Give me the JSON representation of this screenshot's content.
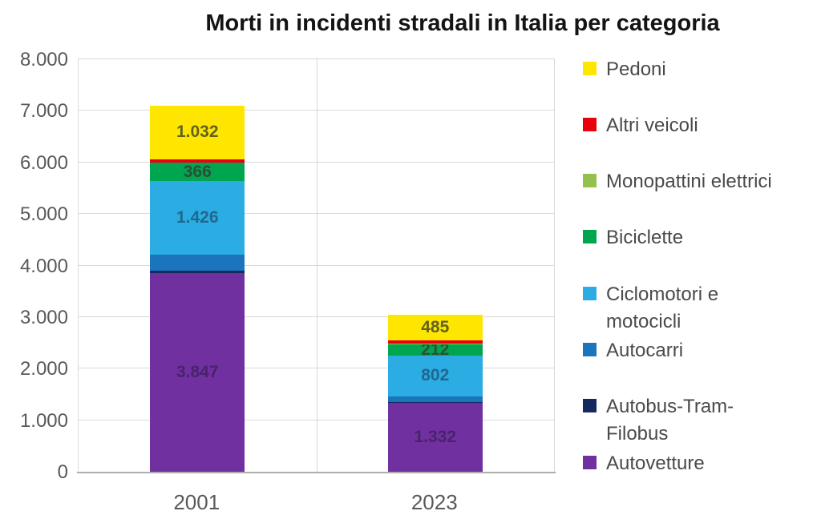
{
  "title": "Morti in incidenti stradali in Italia per categoria",
  "chart_data": {
    "type": "bar",
    "stacked": true,
    "title": "Morti in incidenti stradali in Italia per categoria",
    "categories": [
      "2001",
      "2023"
    ],
    "series": [
      {
        "name": "Autovetture",
        "color": "#7030A0",
        "values": [
          3847,
          1332
        ],
        "data_labels": [
          "3.847",
          "1.332"
        ],
        "label_color": "rgba(32,22,52,0.5)"
      },
      {
        "name": "Autobus-Tram-Filobus",
        "color": "#16295E",
        "values": [
          60,
          25
        ],
        "data_labels": [
          null,
          null
        ],
        "label_color": null
      },
      {
        "name": "Autocarri",
        "color": "#1B75BC",
        "values": [
          300,
          100
        ],
        "data_labels": [
          null,
          null
        ],
        "label_color": null
      },
      {
        "name": "Ciclomotori e motocicli",
        "color": "#2BACE2",
        "values": [
          1426,
          802
        ],
        "data_labels": [
          "1.426",
          "802"
        ],
        "label_color": "#21678F"
      },
      {
        "name": "Biciclette",
        "color": "#00A550",
        "values": [
          366,
          212
        ],
        "data_labels": [
          "366",
          "212"
        ],
        "label_color": "#2C4F37"
      },
      {
        "name": "Monopattini elettrici",
        "color": "#94C14B",
        "values": [
          0,
          21
        ],
        "data_labels": [
          null,
          null
        ],
        "label_color": null
      },
      {
        "name": "Altri veicoli",
        "color": "#E8000D",
        "values": [
          65,
          62
        ],
        "data_labels": [
          null,
          null
        ],
        "label_color": null
      },
      {
        "name": "Pedoni",
        "color": "#FFE600",
        "values": [
          1032,
          485
        ],
        "data_labels": [
          "1.032",
          "485"
        ],
        "label_color": "#62621C"
      }
    ],
    "unlabeled_segment_values_estimated_from_pixels": true,
    "ylim": [
      0,
      8000
    ],
    "ytick_interval": 1000,
    "ytick_labels": [
      "0",
      "1.000",
      "2.000",
      "3.000",
      "4.000",
      "5.000",
      "6.000",
      "7.000",
      "8.000"
    ],
    "grid": true,
    "legend_position": "right"
  },
  "legend": {
    "items": [
      {
        "label": "Pedoni",
        "display": "Pedoni",
        "color": "#FFE600"
      },
      {
        "label": "Altri veicoli",
        "display": "Altri veicoli",
        "color": "#E8000D"
      },
      {
        "label": "Monopattini elettrici",
        "display": "Monopattini elettrici",
        "color": "#94C14B"
      },
      {
        "label": "Biciclette",
        "display": "Biciclette",
        "color": "#00A550"
      },
      {
        "label": "Ciclomotori e motocicli",
        "display": "Ciclomotori e\nmotocicli",
        "color": "#2BACE2"
      },
      {
        "label": "Autocarri",
        "display": "Autocarri",
        "color": "#1B75BC"
      },
      {
        "label": "Autobus-Tram-Filobus",
        "display": "Autobus-Tram-\nFilobus",
        "color": "#16295E"
      },
      {
        "label": "Autovetture",
        "display": "Autovetture",
        "color": "#7030A0"
      }
    ]
  },
  "x_axis": {
    "labels": [
      "2001",
      "2023"
    ]
  }
}
